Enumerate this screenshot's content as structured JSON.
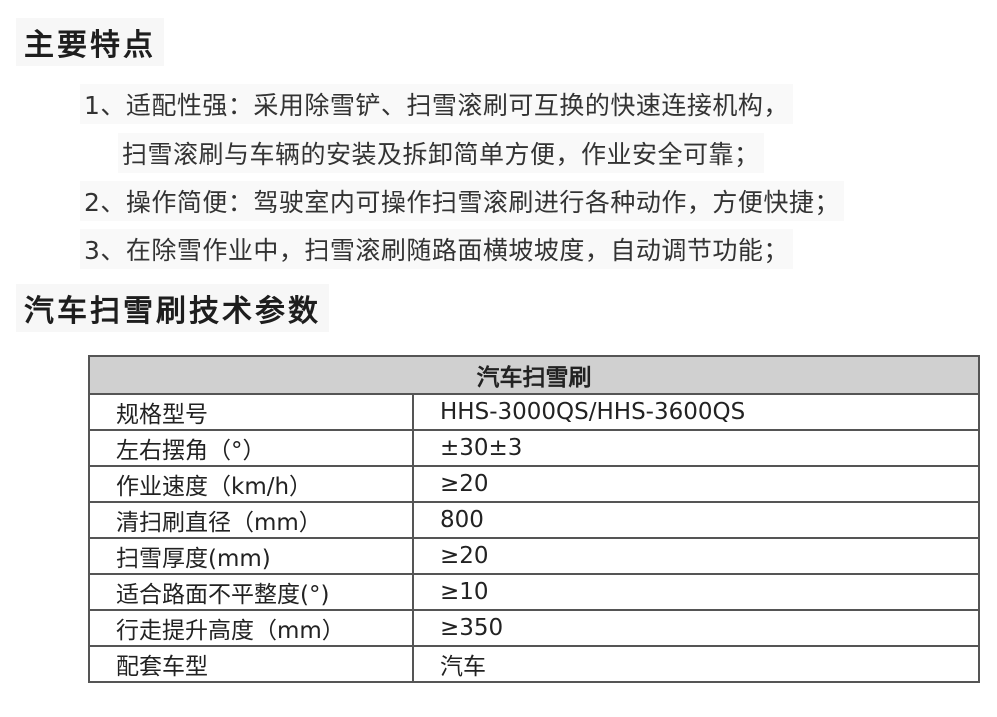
{
  "features": {
    "title": "主要特点",
    "items": [
      {
        "line1": "1、适配性强：采用除雪铲、扫雪滚刷可互换的快速连接机构，",
        "line2": "扫雪滚刷与车辆的安装及拆卸简单方便，作业安全可靠；"
      },
      {
        "line1": "2、操作简便：驾驶室内可操作扫雪滚刷进行各种动作，方便快捷；"
      },
      {
        "line1": "3、在除雪作业中，扫雪滚刷随路面横坡坡度，自动调节功能；"
      }
    ]
  },
  "specs": {
    "title": "汽车扫雪刷技术参数",
    "table_header": "汽车扫雪刷",
    "rows": [
      {
        "label": "规格型号",
        "value": "HHS-3000QS/HHS-3600QS"
      },
      {
        "label": "左右摆角（°）",
        "value": "±30±3"
      },
      {
        "label": "作业速度（km/h）",
        "value": "≥20"
      },
      {
        "label": "清扫刷直径（mm）",
        "value": "800"
      },
      {
        "label": "扫雪厚度(mm)",
        "value": "≥20"
      },
      {
        "label": "适合路面不平整度(°)",
        "value": "≥10"
      },
      {
        "label": "行走提升高度（mm）",
        "value": "≥350"
      },
      {
        "label": "配套车型",
        "value": "汽车"
      }
    ]
  }
}
